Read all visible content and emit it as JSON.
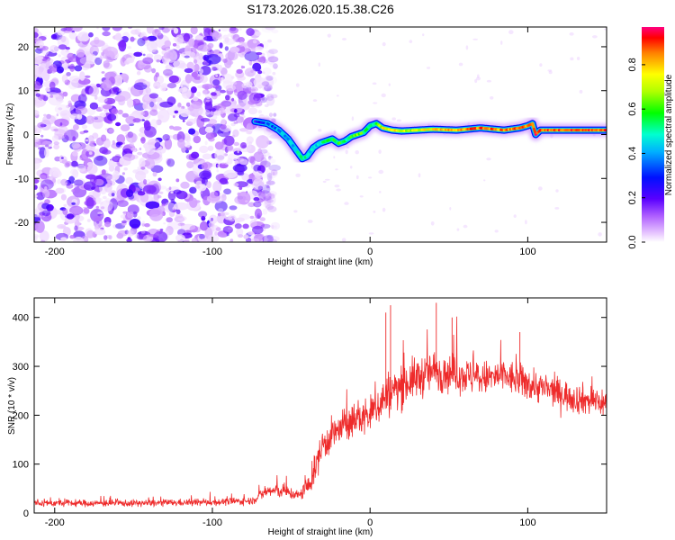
{
  "title": "S173.2026.020.15.38.C26",
  "chart_data": [
    {
      "type": "heatmap",
      "xlabel": "Height of straight line (km)",
      "ylabel": "Frequency (Hz)",
      "xlim": [
        -213,
        150
      ],
      "ylim": [
        -24.5,
        24.5
      ],
      "x_ticks": [
        -200,
        -100,
        0,
        100
      ],
      "y_ticks": [
        -20,
        -10,
        0,
        10,
        20
      ],
      "colorbar": {
        "label": "Normalized spectral amplitude",
        "range": [
          0,
          0.97
        ],
        "ticks": [
          0.0,
          0.2,
          0.4,
          0.6,
          0.8
        ],
        "tick_labels": [
          "0.0",
          "0.2",
          "0.4",
          "0.6",
          "0.8"
        ]
      },
      "noise_region_x": [
        -213,
        -68
      ],
      "ridge": {
        "x": [
          -73,
          -65,
          -58,
          -52,
          -47,
          -43,
          -40,
          -36,
          -32,
          -28,
          -24,
          -20,
          -16,
          -12,
          -8,
          -4,
          0,
          4,
          8,
          14,
          20,
          30,
          40,
          55,
          70,
          85,
          95,
          100,
          103,
          105,
          108,
          150
        ],
        "freq": [
          3,
          2.5,
          1,
          -1,
          -3.5,
          -5.5,
          -5,
          -3,
          -2,
          -1.5,
          -1,
          -2,
          -1.5,
          -0.5,
          0,
          0.5,
          2,
          2.5,
          1.5,
          1,
          0.8,
          1,
          1.2,
          1,
          1.5,
          1,
          1.5,
          2,
          2.5,
          0,
          1,
          1
        ],
        "amplitude": [
          0.25,
          0.35,
          0.4,
          0.4,
          0.45,
          0.55,
          0.5,
          0.45,
          0.5,
          0.6,
          0.55,
          0.6,
          0.55,
          0.6,
          0.65,
          0.6,
          0.5,
          0.6,
          0.75,
          0.8,
          0.7,
          0.75,
          0.8,
          0.85,
          0.9,
          0.85,
          0.9,
          0.85,
          0.9,
          0.95,
          0.9,
          0.9
        ]
      }
    },
    {
      "type": "line",
      "xlabel": "Height of straight line (km)",
      "ylabel": "SNR (10 * v/v)",
      "xlim": [
        -213,
        150
      ],
      "ylim": [
        0,
        440
      ],
      "x_ticks": [
        -200,
        -100,
        0,
        100
      ],
      "y_ticks": [
        0,
        100,
        200,
        300,
        400
      ],
      "color": "#ee2b2b",
      "envelope": {
        "x": [
          -213,
          -150,
          -100,
          -75,
          -65,
          -55,
          -45,
          -38,
          -30,
          -20,
          -10,
          0,
          10,
          25,
          40,
          55,
          70,
          85,
          100,
          115,
          130,
          150
        ],
        "mean": [
          20,
          20,
          22,
          25,
          45,
          45,
          35,
          60,
          140,
          170,
          190,
          200,
          240,
          270,
          290,
          285,
          275,
          280,
          265,
          250,
          235,
          225
        ],
        "noise": [
          9,
          9,
          9,
          10,
          18,
          18,
          15,
          30,
          45,
          45,
          45,
          50,
          60,
          55,
          55,
          50,
          45,
          45,
          45,
          40,
          40,
          40
        ]
      },
      "peaks": [
        {
          "x": 10,
          "y": 410
        },
        {
          "x": 13,
          "y": 425
        },
        {
          "x": 42,
          "y": 430
        },
        {
          "x": 52,
          "y": 400
        },
        {
          "x": 95,
          "y": 370
        }
      ]
    }
  ]
}
